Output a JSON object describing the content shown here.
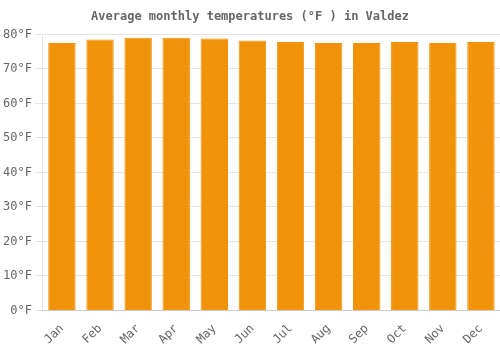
{
  "chart_data": {
    "type": "bar",
    "title": "Average monthly temperatures (°F ) in Valdez",
    "categories": [
      "Jan",
      "Feb",
      "Mar",
      "Apr",
      "May",
      "Jun",
      "Jul",
      "Aug",
      "Sep",
      "Oct",
      "Nov",
      "Dec"
    ],
    "values": [
      77.5,
      78.5,
      79.0,
      79.0,
      78.8,
      78.2,
      77.8,
      77.5,
      77.5,
      77.8,
      77.5,
      77.8
    ],
    "color": "#F0920A",
    "ylim": [
      0,
      80
    ],
    "yticks": [
      {
        "value": 0,
        "label": "0°F"
      },
      {
        "value": 10,
        "label": "10°F"
      },
      {
        "value": 20,
        "label": "20°F"
      },
      {
        "value": 30,
        "label": "30°F"
      },
      {
        "value": 40,
        "label": "40°F"
      },
      {
        "value": 50,
        "label": "50°F"
      },
      {
        "value": 60,
        "label": "60°F"
      },
      {
        "value": 70,
        "label": "70°F"
      },
      {
        "value": 80,
        "label": "80°F"
      }
    ],
    "grid": true
  }
}
